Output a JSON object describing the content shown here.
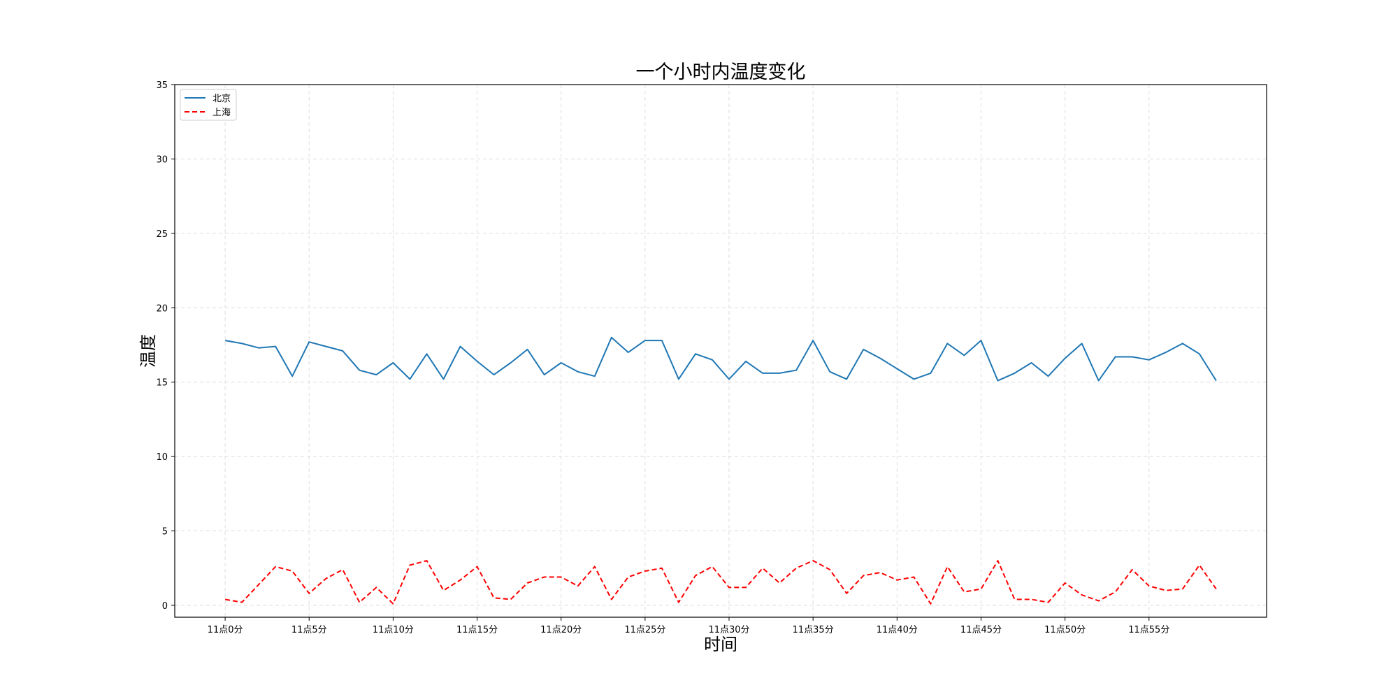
{
  "chart_data": {
    "type": "line",
    "title": "一个小时内温度变化",
    "xlabel": "时间",
    "ylabel": "温度",
    "x_tick_labels": [
      "11点0分",
      "11点5分",
      "11点10分",
      "11点15分",
      "11点20分",
      "11点25分",
      "11点30分",
      "11点35分",
      "11点40分",
      "11点45分",
      "11点50分",
      "11点55分"
    ],
    "x_tick_step": 5,
    "xlim": [
      -3,
      62
    ],
    "ylim": [
      -0.8,
      35
    ],
    "y_ticks": [
      0,
      5,
      10,
      15,
      20,
      25,
      30,
      35
    ],
    "grid": true,
    "legend_position": "top-left",
    "series": [
      {
        "name": "北京",
        "color": "#1f77b4",
        "linestyle": "solid",
        "values": [
          17.8,
          17.6,
          17.3,
          17.4,
          15.4,
          17.7,
          17.4,
          17.1,
          15.8,
          15.5,
          16.3,
          15.2,
          16.9,
          15.2,
          17.4,
          16.4,
          15.5,
          16.3,
          17.2,
          15.5,
          16.3,
          15.7,
          15.4,
          18.0,
          17.0,
          17.8,
          17.8,
          15.2,
          16.9,
          16.5,
          15.2,
          16.4,
          15.6,
          15.6,
          15.8,
          17.8,
          15.7,
          15.2,
          17.2,
          16.6,
          15.9,
          15.2,
          15.6,
          17.6,
          16.8,
          17.8,
          15.1,
          15.6,
          16.3,
          15.4,
          16.6,
          17.6,
          15.1,
          16.7,
          16.7,
          16.5,
          17.0,
          17.6,
          16.9,
          15.1
        ]
      },
      {
        "name": "上海",
        "color": "#ff0000",
        "linestyle": "dashed",
        "values": [
          0.4,
          0.2,
          1.4,
          2.6,
          2.3,
          0.8,
          1.8,
          2.4,
          0.2,
          1.2,
          0.1,
          2.7,
          3.0,
          1.0,
          1.7,
          2.6,
          0.5,
          0.4,
          1.5,
          1.9,
          1.9,
          1.3,
          2.6,
          0.4,
          1.9,
          2.3,
          2.5,
          0.2,
          2.0,
          2.6,
          1.2,
          1.2,
          2.5,
          1.5,
          2.5,
          3.0,
          2.4,
          0.8,
          2.0,
          2.2,
          1.7,
          1.9,
          0.1,
          2.6,
          0.9,
          1.1,
          3.0,
          0.4,
          0.4,
          0.2,
          1.5,
          0.7,
          0.3,
          0.9,
          2.4,
          1.3,
          1.0,
          1.1,
          2.7,
          1.1
        ]
      }
    ]
  }
}
